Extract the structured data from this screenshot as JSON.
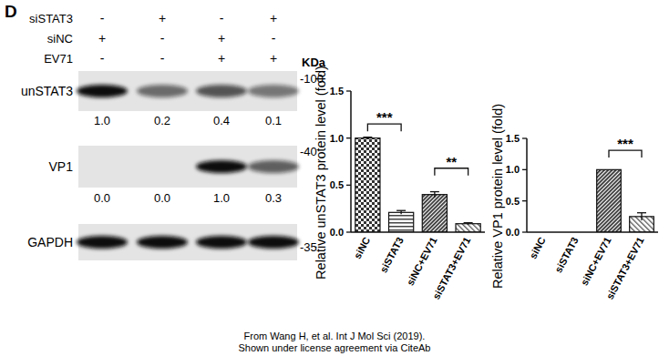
{
  "panel_label": "D",
  "blot": {
    "conditions": [
      {
        "label": "siSTAT3",
        "values": [
          "-",
          "+",
          "-",
          "+"
        ]
      },
      {
        "label": "siNC",
        "values": [
          "+",
          "-",
          "+",
          "-"
        ]
      },
      {
        "label": "EV71",
        "values": [
          "-",
          "-",
          "+",
          "+"
        ]
      }
    ],
    "kda_label": "KDa",
    "rows": [
      {
        "label": "unSTAT3",
        "mw_label": "-100",
        "quant": [
          "1.0",
          "0.2",
          "0.4",
          "0.1"
        ]
      },
      {
        "label": "VP1",
        "mw_label": "-40",
        "quant": [
          "0.0",
          "0.0",
          "1.0",
          "0.3"
        ]
      },
      {
        "label": "GAPDH",
        "mw_label": "-35"
      }
    ]
  },
  "chart_data": [
    {
      "type": "bar",
      "ylabel": "Relative unSTAT3 protein level (fold)",
      "categories": [
        "siNC",
        "siSTAT3",
        "siNC+EV71",
        "siSTAT3+EV71"
      ],
      "values": [
        1.0,
        0.21,
        0.4,
        0.09
      ],
      "errors": [
        0.01,
        0.02,
        0.03,
        0.01
      ],
      "colors": [
        "#333333",
        "#444444",
        "#333333",
        "#555555"
      ],
      "ylim": [
        0,
        1.5
      ],
      "yticks": [
        {
          "value": 0,
          "label": "0.0"
        },
        {
          "value": 0.5,
          "label": "0.5"
        },
        {
          "value": 1,
          "label": "1.0"
        },
        {
          "value": 1.5,
          "label": "1.5"
        }
      ],
      "annotations": [
        {
          "text": "***",
          "from": 0,
          "to": 1,
          "y": 1.15
        },
        {
          "text": "**",
          "from": 2,
          "to": 3,
          "y": 0.68
        }
      ]
    },
    {
      "type": "bar",
      "ylabel": "Relative VP1 protein level (fold)",
      "categories": [
        "siNC",
        "siSTAT3",
        "siNC+EV71",
        "siSTAT3+EV71"
      ],
      "values": [
        0,
        0,
        1.0,
        0.25
      ],
      "errors": [
        0,
        0,
        0,
        0.06
      ],
      "colors": [
        "#333333",
        "#444444",
        "#333333",
        "#555555"
      ],
      "ylim": [
        0,
        1.5
      ],
      "yticks": [
        {
          "value": 0,
          "label": "0.0"
        },
        {
          "value": 0.5,
          "label": "0.5"
        },
        {
          "value": 1,
          "label": "1.0"
        },
        {
          "value": 1.5,
          "label": "1.5"
        }
      ],
      "annotations": [
        {
          "text": "***",
          "from": 2,
          "to": 3,
          "y": 1.31
        }
      ]
    }
  ],
  "caption": [
    "From Wang H, et al. Int J Mol Sci (2019).",
    "Shown under license agreement via CiteAb"
  ]
}
